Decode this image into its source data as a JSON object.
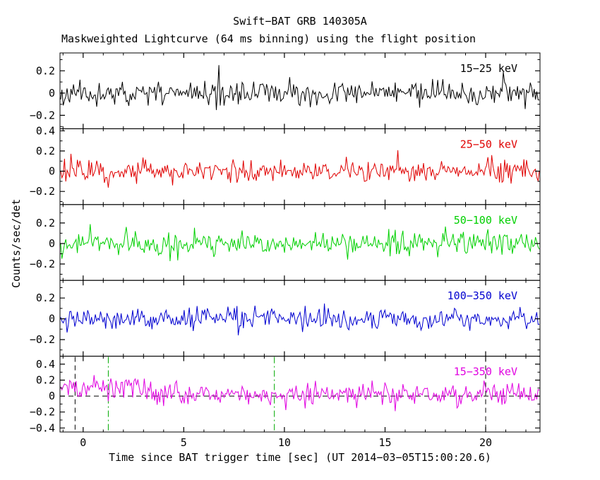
{
  "chart_data": {
    "type": "line",
    "title": "Swift−BAT GRB 140305A",
    "subtitle": "Maskweighted Lightcurve (64 ms binning) using the flight position",
    "xlabel": "Time since BAT trigger time [sec] (UT 2014−03−05T15:00:20.6)",
    "ylabel": "Counts/sec/det",
    "xlim": [
      -1.15,
      22.7
    ],
    "xticks": [
      {
        "v": 0,
        "label": "0"
      },
      {
        "v": 5,
        "label": "5"
      },
      {
        "v": 10,
        "label": "10"
      },
      {
        "v": 15,
        "label": "15"
      },
      {
        "v": 20,
        "label": "20"
      }
    ],
    "x_minor_step": 1,
    "y_minor_step": 0.1,
    "bin_seconds": 0.064,
    "n_points": 373,
    "grid": false,
    "legend_position": "inside-top-right",
    "panels": [
      {
        "label": "15−25 keV",
        "color": "#000000",
        "ylim": [
          -0.32,
          0.36
        ],
        "yticks": [
          {
            "v": 0.2,
            "label": "0.2"
          },
          {
            "v": 0,
            "label": "0"
          },
          {
            "v": -0.2,
            "label": "−0.2"
          }
        ],
        "baseline": 0,
        "sigma": 0.05,
        "seed": 11
      },
      {
        "label": "25−50 keV",
        "color": "#e00000",
        "ylim": [
          -0.33,
          0.42
        ],
        "yticks": [
          {
            "v": 0.4,
            "label": "0.4"
          },
          {
            "v": 0.2,
            "label": "0.2"
          },
          {
            "v": 0,
            "label": "0"
          },
          {
            "v": -0.2,
            "label": "−0.2"
          }
        ],
        "baseline": 0,
        "sigma": 0.055,
        "seed": 22
      },
      {
        "label": "50−100 keV",
        "color": "#00d000",
        "ylim": [
          -0.36,
          0.38
        ],
        "yticks": [
          {
            "v": 0.2,
            "label": "0.2"
          },
          {
            "v": 0,
            "label": "0"
          },
          {
            "v": -0.2,
            "label": "−0.2"
          }
        ],
        "baseline": 0,
        "sigma": 0.055,
        "seed": 33
      },
      {
        "label": "100−350 keV",
        "color": "#0000d0",
        "ylim": [
          -0.36,
          0.37
        ],
        "yticks": [
          {
            "v": 0.2,
            "label": "0.2"
          },
          {
            "v": 0,
            "label": "0"
          },
          {
            "v": -0.2,
            "label": "−0.2"
          }
        ],
        "baseline": 0,
        "sigma": 0.05,
        "seed": 44
      },
      {
        "label": "15−350 keV",
        "color": "#e000e0",
        "ylim": [
          -0.45,
          0.5
        ],
        "yticks": [
          {
            "v": 0.4,
            "label": "0.4"
          },
          {
            "v": 0.2,
            "label": "0.2"
          },
          {
            "v": 0,
            "label": "0"
          },
          {
            "v": -0.2,
            "label": "−0.2"
          },
          {
            "v": -0.4,
            "label": "−0.4"
          }
        ],
        "baseline": 0.02,
        "sigma": 0.07,
        "seed": 55,
        "burst": {
          "center": 1.3,
          "width": 1.6,
          "amp": 0.09
        }
      }
    ],
    "annotations": {
      "vlines": [
        {
          "x": -0.4,
          "color": "#000000",
          "style": "dashed",
          "panel": 4
        },
        {
          "x": 1.25,
          "color": "#00aa00",
          "style": "dashdot",
          "panel": 4
        },
        {
          "x": 9.5,
          "color": "#00aa00",
          "style": "dashdot",
          "panel": 4
        },
        {
          "x": 20.0,
          "color": "#000000",
          "style": "dashed",
          "panel": 4
        }
      ],
      "hlines": [
        {
          "y": 0,
          "color": "#000000",
          "style": "dashed",
          "panel": 4
        }
      ]
    }
  }
}
